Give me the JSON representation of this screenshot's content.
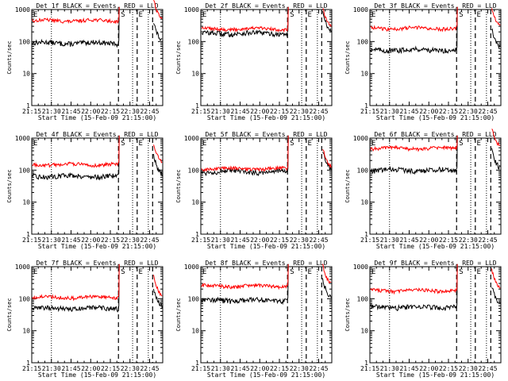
{
  "axis": {
    "ylabel": "Counts/sec",
    "xlabel": "Start Time (15-Feb-09 21:15:00)",
    "xticks": [
      "21:15",
      "21:30",
      "21:45",
      "22:00",
      "22:15",
      "22:30",
      "22:45"
    ],
    "yticks": [
      "1",
      "10",
      "100",
      "1000"
    ],
    "ylim": [
      1,
      1000
    ],
    "yscale": "log"
  },
  "colors": {
    "events": "#000000",
    "lld": "#ff0000"
  },
  "markers": {
    "s_label": "S",
    "e_label": "E"
  },
  "chart_data": [
    {
      "type": "line",
      "title": "Det 1f BLACK = Events, RED = LLD",
      "black_level": 90,
      "red_level": 450
    },
    {
      "type": "line",
      "title": "Det 2f BLACK = Events, RED = LLD",
      "black_level": 180,
      "red_level": 250
    },
    {
      "type": "line",
      "title": "Det 3f BLACK = Events, RED = LLD",
      "black_level": 55,
      "red_level": 260
    },
    {
      "type": "line",
      "title": "Det 4f BLACK = Events, RED = LLD",
      "black_level": 65,
      "red_level": 150
    },
    {
      "type": "line",
      "title": "Det 5f BLACK = Events, RED = LLD",
      "black_level": 90,
      "red_level": 110
    },
    {
      "type": "line",
      "title": "Det 6f BLACK = Events, RED = LLD",
      "black_level": 100,
      "red_level": 480
    },
    {
      "type": "line",
      "title": "Det 7f BLACK = Events, RED = LLD",
      "black_level": 50,
      "red_level": 110
    },
    {
      "type": "line",
      "title": "Det 8f BLACK = Events, RED = LLD",
      "black_level": 90,
      "red_level": 250
    },
    {
      "type": "line",
      "title": "Det 9f BLACK = Events, RED = LLD",
      "black_level": 55,
      "red_level": 180
    }
  ]
}
